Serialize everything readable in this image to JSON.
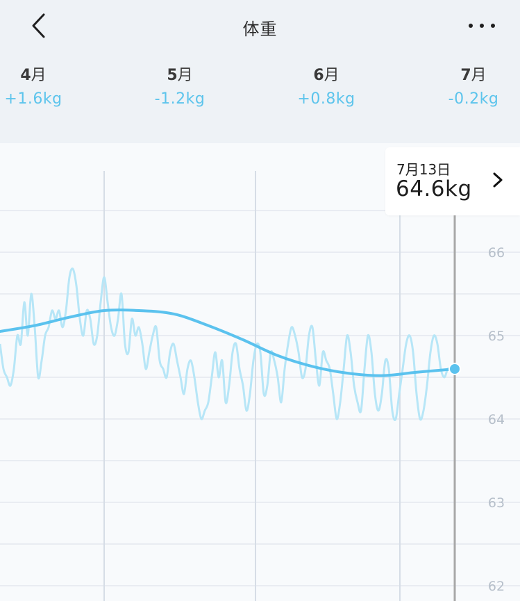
{
  "header": {
    "title": "体重",
    "back_icon": "chevron-left-icon",
    "more_icon": "more-horizontal-icon"
  },
  "months": [
    {
      "num": "4",
      "suffix": "月",
      "change": "+1.6kg"
    },
    {
      "num": "5",
      "suffix": "月",
      "change": "-1.2kg"
    },
    {
      "num": "6",
      "suffix": "月",
      "change": "+0.8kg"
    },
    {
      "num": "7",
      "suffix": "月",
      "change": "-0.2kg"
    }
  ],
  "colors": {
    "change_text": "#5cc4ec",
    "trend_line": "#5bc2ee",
    "raw_line": "#b7e6f7",
    "cursor_line": "#a8a8a8",
    "grid": "#e4e8ee",
    "axis_label": "#b6bfca"
  },
  "tooltip": {
    "date": "7月13日",
    "value": "64.6kg",
    "arrow_icon": "chevron-right-icon"
  },
  "chart_data": {
    "type": "line",
    "ylim": [
      62,
      66.8
    ],
    "yticks": [
      "66",
      "65",
      "64",
      "63",
      "62"
    ],
    "xlabel": "",
    "ylabel": "",
    "grid": true,
    "series": [
      {
        "x": [
          0,
          5,
          10,
          15,
          20,
          25,
          30,
          35,
          40,
          45,
          50,
          55,
          60,
          65,
          70,
          75,
          80,
          85,
          90,
          95,
          100,
          105,
          110,
          115,
          120,
          125,
          130,
          135,
          140,
          145,
          150,
          155,
          160,
          165,
          170,
          175,
          180,
          185,
          190,
          195,
          200,
          205,
          210,
          215,
          220,
          225,
          230,
          235,
          240,
          245,
          250,
          255,
          260,
          265,
          270,
          275,
          280,
          285,
          290,
          295,
          300,
          305,
          310,
          315,
          320,
          325,
          330,
          335,
          340,
          345,
          350,
          355,
          360,
          365,
          370,
          375,
          380,
          385,
          390,
          395,
          400,
          405,
          410,
          415,
          420,
          425,
          430,
          435,
          440,
          445,
          450,
          455,
          460,
          465,
          470,
          475,
          480,
          485,
          490,
          495,
          500,
          505,
          510,
          515,
          520,
          525,
          530,
          535,
          540,
          545,
          550,
          555,
          560,
          565,
          570,
          575,
          580,
          585,
          590,
          595,
          600,
          605,
          610,
          615,
          620,
          625,
          630,
          635,
          640,
          645,
          650,
          655
        ],
        "y": [
          64.9,
          64.6,
          64.5,
          64.4,
          64.6,
          65.0,
          64.9,
          65.4,
          65.0,
          65.5,
          65.1,
          64.5,
          64.7,
          65.0,
          65.1,
          65.3,
          65.2,
          65.3,
          65.1,
          65.3,
          65.7,
          65.8,
          65.6,
          65.2,
          65.0,
          65.3,
          65.2,
          64.9,
          65.0,
          65.4,
          65.7,
          65.4,
          65.1,
          65.0,
          65.2,
          65.5,
          64.9,
          64.8,
          65.2,
          65.0,
          65.1,
          64.9,
          64.6,
          64.8,
          65.0,
          65.1,
          64.7,
          64.6,
          64.5,
          64.8,
          64.9,
          64.7,
          64.5,
          64.3,
          64.6,
          64.7,
          64.5,
          64.2,
          64.0,
          64.1,
          64.2,
          64.5,
          64.8,
          64.5,
          64.7,
          64.2,
          64.4,
          64.8,
          64.9,
          64.6,
          64.4,
          64.1,
          64.3,
          64.7,
          64.9,
          64.8,
          64.3,
          64.4,
          64.8,
          64.7,
          64.5,
          64.2,
          64.6,
          64.9,
          65.1,
          65.0,
          64.8,
          64.5,
          64.6,
          65.0,
          65.1,
          64.7,
          64.4,
          64.8,
          64.7,
          64.6,
          64.3,
          64.0,
          64.2,
          64.6,
          65.0,
          64.8,
          64.4,
          64.2,
          64.1,
          64.6,
          65.0,
          64.8,
          64.3,
          64.1,
          64.3,
          64.7,
          64.6,
          64.1,
          64.0,
          64.3,
          64.6,
          64.9,
          65.0,
          64.8,
          64.3,
          64.0,
          64.1,
          64.4,
          64.8,
          65.0,
          64.9,
          64.6,
          64.5,
          64.6,
          64.6,
          64.6
        ],
        "name": "",
        "style": "raw"
      },
      {
        "x": [
          0,
          50,
          100,
          150,
          200,
          250,
          300,
          350,
          400,
          450,
          500,
          550,
          600,
          655
        ],
        "y": [
          65.05,
          65.12,
          65.22,
          65.3,
          65.3,
          65.26,
          65.12,
          64.95,
          64.76,
          64.63,
          64.55,
          64.52,
          64.56,
          64.6
        ],
        "name": "",
        "style": "trend"
      }
    ],
    "cursor_x": 655,
    "cursor_value": 64.6,
    "month_lines_x": [
      150,
      368,
      576
    ]
  }
}
